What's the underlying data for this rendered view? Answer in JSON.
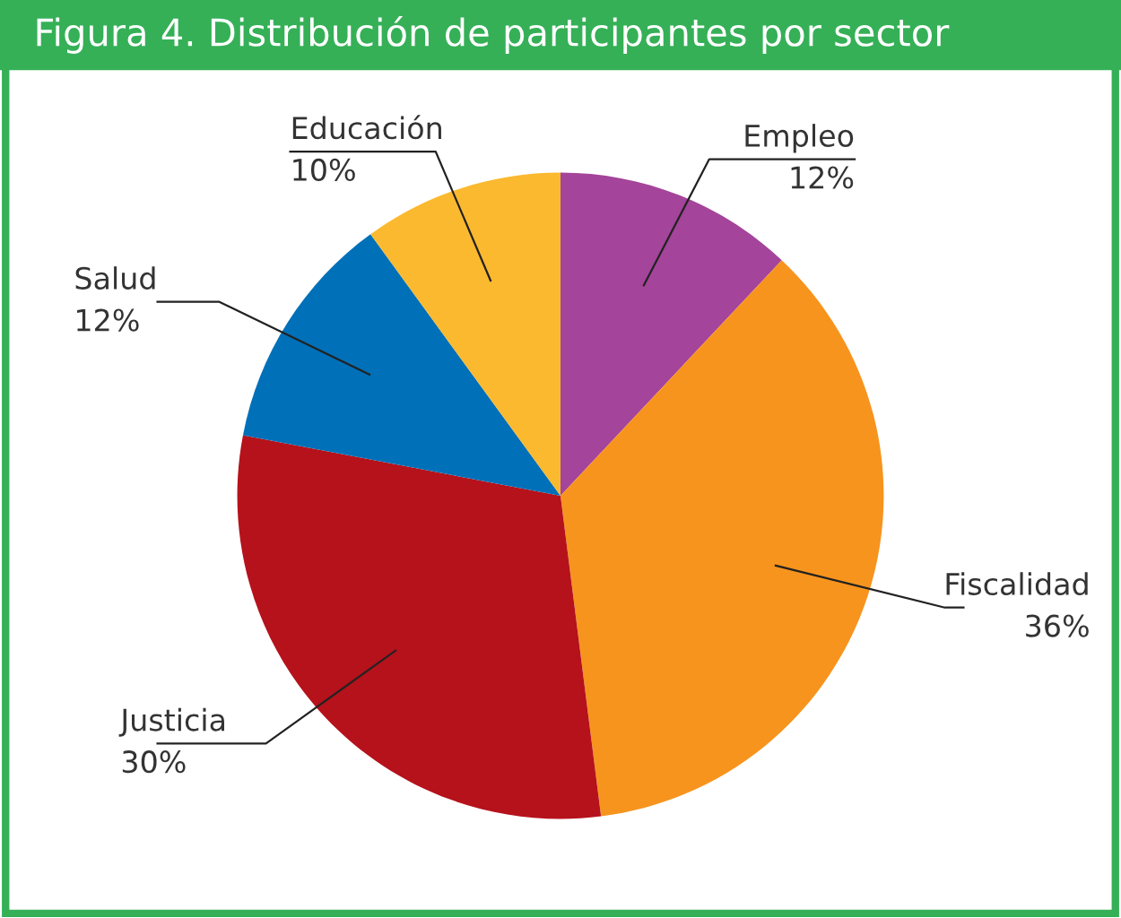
{
  "chart_data": {
    "type": "pie",
    "title": "Figura 4. Distribución de participantes por sector",
    "categories": [
      "Empleo",
      "Fiscalidad",
      "Justicia",
      "Salud",
      "Educación"
    ],
    "values": [
      12,
      36,
      30,
      12,
      10
    ],
    "colors": [
      "#a4449a",
      "#f7941d",
      "#b5121b",
      "#0070b8",
      "#fbb92f"
    ],
    "value_labels": [
      "12%",
      "36%",
      "30%",
      "12%",
      "10%"
    ],
    "legend": false
  }
}
